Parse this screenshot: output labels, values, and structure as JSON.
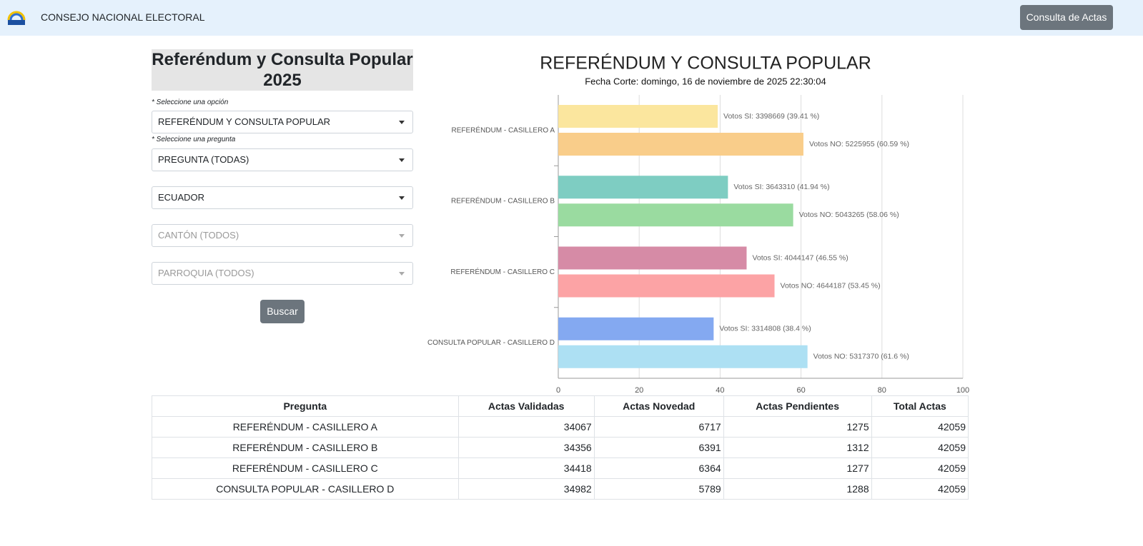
{
  "header": {
    "title": "CONSEJO NACIONAL ELECTORAL",
    "button": "Consulta de Actas"
  },
  "form": {
    "title": "Referéndum y Consulta Popular 2025",
    "option_label": "* Seleccione una opción",
    "option": "REFERÉNDUM Y CONSULTA POPULAR",
    "question_label": "* Seleccione una pregunta",
    "question": "PREGUNTA (TODAS)",
    "province": "ECUADOR",
    "canton": "CANTÓN (TODOS)",
    "parish": "PARROQUIA (TODOS)",
    "button": "Buscar"
  },
  "chart_data": {
    "type": "bar",
    "orientation": "horizontal",
    "title": "REFERÉNDUM Y CONSULTA POPULAR",
    "subtitle": "Fecha Corte: domingo, 16 de noviembre de 2025 22:30:04",
    "categories": [
      "REFERÉNDUM - CASILLERO A",
      "REFERÉNDUM - CASILLERO B",
      "REFERÉNDUM - CASILLERO C",
      "CONSULTA POPULAR - CASILLERO D"
    ],
    "series": [
      {
        "colors": [
          "#fbe69e",
          "#7ecdc2",
          "#d68ba6",
          "#84a9f1"
        ],
        "values": [
          39.41,
          41.94,
          46.55,
          38.4
        ],
        "value_labels": [
          "Votos SI: 3398669 (39.41 %)",
          "Votos SI: 3643310 (41.94 %)",
          "Votos SI: 4044147 (46.55 %)",
          "Votos SI: 3314808 (38.4 %)"
        ]
      },
      {
        "colors": [
          "#f9cd8a",
          "#9adba0",
          "#fca3a5",
          "#ade0f3"
        ],
        "values": [
          60.59,
          58.06,
          53.45,
          61.6
        ],
        "value_labels": [
          "Votos NO: 5225955 (60.59 %)",
          "Votos NO: 5043265 (58.06 %)",
          "Votos NO: 4644187 (53.45 %)",
          "Votos NO: 5317370 (61.6 %)"
        ]
      }
    ],
    "xlim": [
      0,
      100
    ],
    "xticks": [
      0,
      20,
      40,
      60,
      80,
      100
    ],
    "grid": true
  },
  "table": {
    "headers": [
      "Pregunta",
      "Actas Validadas",
      "Actas Novedad",
      "Actas Pendientes",
      "Total Actas"
    ],
    "rows": [
      [
        "REFERÉNDUM - CASILLERO A",
        "34067",
        "6717",
        "1275",
        "42059"
      ],
      [
        "REFERÉNDUM - CASILLERO B",
        "34356",
        "6391",
        "1312",
        "42059"
      ],
      [
        "REFERÉNDUM - CASILLERO C",
        "34418",
        "6364",
        "1277",
        "42059"
      ],
      [
        "CONSULTA POPULAR - CASILLERO D",
        "34982",
        "5789",
        "1288",
        "42059"
      ]
    ]
  }
}
